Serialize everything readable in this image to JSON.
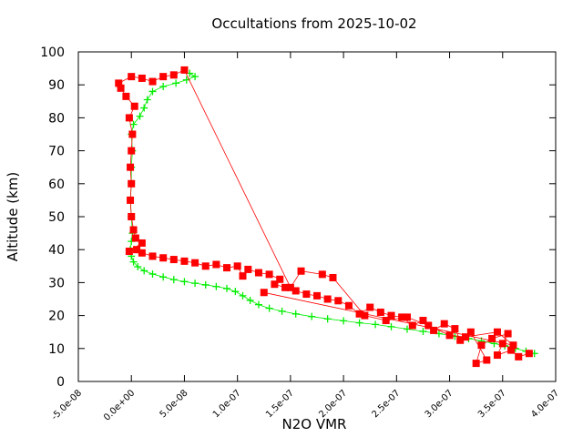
{
  "chart_data": {
    "type": "scatter",
    "title": "Occultations from 2025-10-02",
    "xlabel": "N2O VMR",
    "ylabel": "Altitude (km)",
    "xlim": [
      -5e-08,
      4e-07
    ],
    "ylim": [
      0,
      100
    ],
    "x_ticks": [
      -5e-08,
      0,
      5e-08,
      1e-07,
      1.5e-07,
      2e-07,
      2.5e-07,
      3e-07,
      3.5e-07,
      4e-07
    ],
    "x_tick_labels": [
      "-5.0e-08",
      "0.0e+00",
      "5.0e-08",
      "1.0e-07",
      "1.5e-07",
      "2.0e-07",
      "2.5e-07",
      "3.0e-07",
      "3.5e-07",
      "4.0e-07"
    ],
    "y_ticks": [
      0,
      10,
      20,
      30,
      40,
      50,
      60,
      70,
      80,
      90,
      100
    ],
    "y_tick_labels": [
      "0",
      "10",
      "20",
      "30",
      "40",
      "50",
      "60",
      "70",
      "80",
      "90",
      "100"
    ],
    "grid": false,
    "legend": "none",
    "series": [
      {
        "color": "#00ee00",
        "marker": "plus",
        "points": [
          [
            3.8e-07,
            8.5
          ],
          [
            3.72e-07,
            9.2
          ],
          [
            3.62e-07,
            10.0
          ],
          [
            3.52e-07,
            10.8
          ],
          [
            3.42e-07,
            11.5
          ],
          [
            3.3e-07,
            12.3
          ],
          [
            3.18e-07,
            13.0
          ],
          [
            3.05e-07,
            13.7
          ],
          [
            2.9e-07,
            14.5
          ],
          [
            2.75e-07,
            15.2
          ],
          [
            2.6e-07,
            15.9
          ],
          [
            2.45e-07,
            16.6
          ],
          [
            2.3e-07,
            17.3
          ],
          [
            2.15e-07,
            17.8
          ],
          [
            2e-07,
            18.4
          ],
          [
            1.85e-07,
            19.0
          ],
          [
            1.7e-07,
            19.7
          ],
          [
            1.55e-07,
            20.5
          ],
          [
            1.42e-07,
            21.3
          ],
          [
            1.3e-07,
            22.2
          ],
          [
            1.2e-07,
            23.3
          ],
          [
            1.12e-07,
            24.6
          ],
          [
            1.05e-07,
            26.0
          ],
          [
            9.8e-08,
            27.3
          ],
          [
            9e-08,
            28.2
          ],
          [
            8e-08,
            28.8
          ],
          [
            7e-08,
            29.3
          ],
          [
            6e-08,
            29.8
          ],
          [
            5e-08,
            30.3
          ],
          [
            4e-08,
            30.9
          ],
          [
            3e-08,
            31.7
          ],
          [
            2e-08,
            32.6
          ],
          [
            1.2e-08,
            33.6
          ],
          [
            6e-09,
            34.8
          ],
          [
            2e-09,
            36.3
          ],
          [
            0,
            38.0
          ],
          [
            -1e-09,
            40.0
          ],
          [
            0,
            42.5
          ],
          [
            1e-09,
            45.0
          ],
          [
            0,
            50.0
          ],
          [
            -1e-09,
            55.0
          ],
          [
            0,
            60.0
          ],
          [
            0,
            65.0
          ],
          [
            1e-09,
            70.0
          ],
          [
            0,
            75.0
          ],
          [
            2e-09,
            78.0
          ],
          [
            8e-09,
            80.5
          ],
          [
            1.2e-08,
            83.0
          ],
          [
            1.5e-08,
            85.5
          ],
          [
            2e-08,
            88.0
          ],
          [
            3e-08,
            89.5
          ],
          [
            4.2e-08,
            90.5
          ],
          [
            5.2e-08,
            91.5
          ],
          [
            6e-08,
            92.5
          ],
          [
            5.5e-08,
            93.5
          ]
        ]
      },
      {
        "color": "#ff0000",
        "marker": "square",
        "points": [
          [
            3.75e-07,
            8.5
          ],
          [
            3.65e-07,
            7.5
          ],
          [
            3.58e-07,
            9.5
          ],
          [
            3.45e-07,
            8.0
          ],
          [
            3.5e-07,
            11.5
          ],
          [
            3.55e-07,
            14.5
          ],
          [
            3.4e-07,
            13.0
          ],
          [
            3.3e-07,
            11.0
          ],
          [
            3.25e-07,
            5.5
          ],
          [
            3.35e-07,
            6.5
          ],
          [
            3.2e-07,
            15.0
          ],
          [
            3.1e-07,
            12.5
          ],
          [
            3.05e-07,
            16.0
          ],
          [
            2.95e-07,
            17.5
          ],
          [
            2.85e-07,
            15.5
          ],
          [
            2.75e-07,
            18.5
          ],
          [
            2.65e-07,
            17.0
          ],
          [
            2.55e-07,
            19.5
          ],
          [
            2.45e-07,
            20.0
          ],
          [
            2.35e-07,
            21.0
          ],
          [
            2.25e-07,
            22.5
          ],
          [
            2.15e-07,
            20.5
          ],
          [
            2.05e-07,
            23.0
          ],
          [
            1.95e-07,
            24.5
          ],
          [
            1.85e-07,
            25.0
          ],
          [
            1.75e-07,
            26.0
          ],
          [
            1.65e-07,
            26.5
          ],
          [
            1.55e-07,
            27.5
          ],
          [
            1.45e-07,
            28.5
          ],
          [
            1.35e-07,
            29.5
          ],
          [
            1.4e-07,
            31.0
          ],
          [
            1.3e-07,
            32.5
          ],
          [
            1.2e-07,
            33.0
          ],
          [
            1.1e-07,
            34.0
          ],
          [
            1.05e-07,
            32.0
          ],
          [
            1e-07,
            35.0
          ],
          [
            9e-08,
            34.5
          ],
          [
            8e-08,
            35.5
          ],
          [
            7e-08,
            35.0
          ],
          [
            6e-08,
            36.0
          ],
          [
            5e-08,
            36.5
          ],
          [
            4e-08,
            37.0
          ],
          [
            3e-08,
            37.5
          ],
          [
            2e-08,
            38.0
          ],
          [
            1e-08,
            39.0
          ],
          [
            5e-09,
            40.0
          ],
          [
            -2e-09,
            39.5
          ],
          [
            1e-08,
            42.0
          ],
          [
            4e-09,
            43.5
          ],
          [
            2e-09,
            46.0
          ],
          [
            0,
            50.0
          ],
          [
            -1e-09,
            55.0
          ],
          [
            0,
            60.0
          ],
          [
            -1e-09,
            65.0
          ],
          [
            0,
            70.0
          ],
          [
            1e-09,
            75.0
          ],
          [
            -2e-09,
            80.0
          ],
          [
            3e-09,
            83.5
          ],
          [
            -5e-09,
            86.5
          ],
          [
            -1e-08,
            89.0
          ],
          [
            -1.2e-08,
            90.5
          ],
          [
            0,
            92.5
          ],
          [
            1e-08,
            92.0
          ],
          [
            2e-08,
            91.0
          ],
          [
            3e-08,
            92.5
          ],
          [
            4e-08,
            93.0
          ],
          [
            5e-08,
            94.5
          ],
          [
            1.5e-07,
            28.5
          ],
          [
            1.6e-07,
            33.5
          ],
          [
            1.8e-07,
            32.5
          ],
          [
            1.9e-07,
            31.5
          ],
          [
            2.2e-07,
            20.0
          ],
          [
            2.4e-07,
            18.5
          ],
          [
            2.6e-07,
            19.5
          ],
          [
            2.8e-07,
            17.0
          ],
          [
            3e-07,
            14.0
          ],
          [
            3.15e-07,
            13.5
          ],
          [
            3.45e-07,
            15.0
          ],
          [
            3.6e-07,
            11.0
          ],
          [
            1.25e-07,
            27.0
          ]
        ]
      }
    ]
  }
}
